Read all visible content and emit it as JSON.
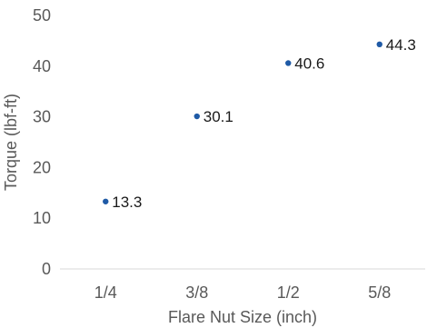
{
  "chart_data": {
    "type": "scatter",
    "categories": [
      "1/4",
      "3/8",
      "1/2",
      "5/8"
    ],
    "series": [
      {
        "values": [
          13.3,
          30.1,
          40.6,
          44.3
        ],
        "data_labels": [
          "13.3",
          "30.1",
          "40.6",
          "44.3"
        ]
      }
    ],
    "xlabel": "Flare Nut Size (inch)",
    "ylabel": "Torque (lbf-ft)",
    "ylim": [
      0,
      50
    ],
    "yticks": [
      "0",
      "10",
      "20",
      "30",
      "40",
      "50"
    ],
    "grid": false,
    "legend": "none",
    "marker_color": "#1f5aa6"
  }
}
